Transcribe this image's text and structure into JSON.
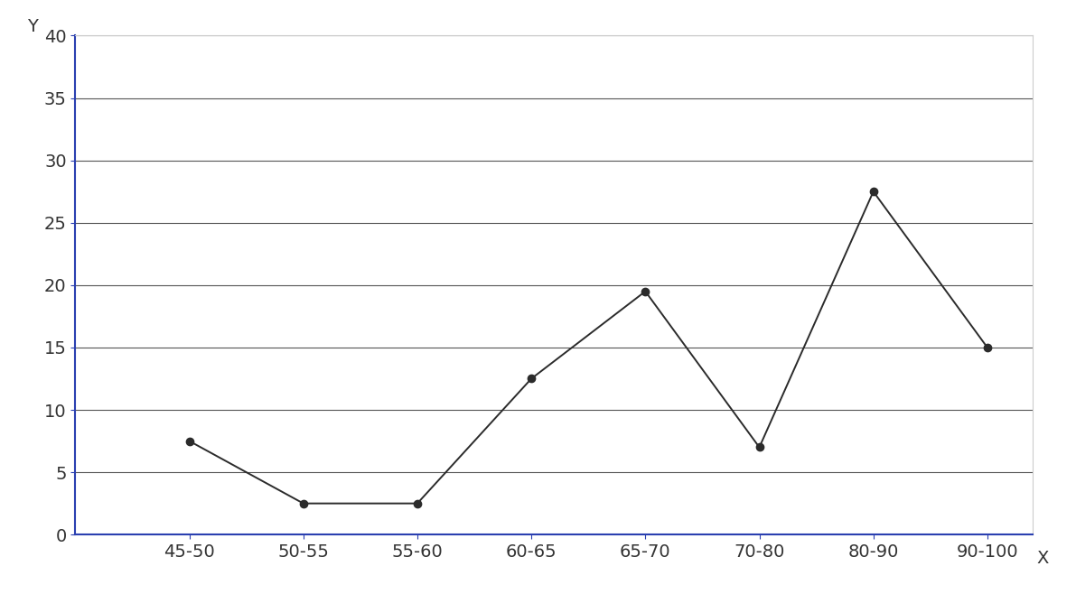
{
  "chart_data": {
    "type": "line",
    "categories": [
      "45-50",
      "50-55",
      "55-60",
      "60-65",
      "65-70",
      "70-80",
      "80-90",
      "90-100"
    ],
    "values": [
      7.5,
      2.5,
      2.5,
      12.5,
      19.5,
      7,
      27.5,
      15
    ],
    "color": "#2b2b2b",
    "marker": "o",
    "line_style": "solid",
    "x_label": "X",
    "y_label": "Y",
    "ylim": [
      0,
      40
    ],
    "yticks": [
      0,
      5,
      10,
      15,
      20,
      25,
      30,
      35,
      40
    ],
    "grid": true
  }
}
